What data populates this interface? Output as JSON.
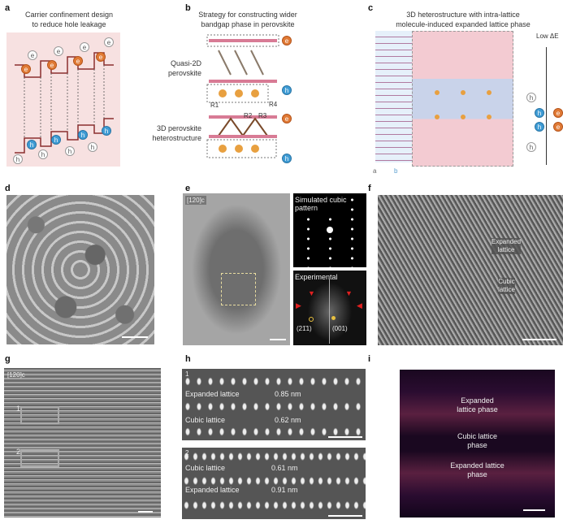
{
  "panels": {
    "a": {
      "label": "a",
      "title_line1": "Carrier confinement design",
      "title_line2": "to reduce hole leakage",
      "electron": "e",
      "hole": "h"
    },
    "b": {
      "label": "b",
      "title_line1": "Strategy for constructing wider",
      "title_line2": "bandgap phase in perovskite",
      "quasi2d_1": "Quasi-2D",
      "quasi2d_2": "perovskite",
      "hetero_1": "3D perovskite",
      "hetero_2": "heterostructure",
      "r1": "R1",
      "r2": "R2",
      "r3": "R3",
      "r4": "R4",
      "electron": "e",
      "hole": "h"
    },
    "c": {
      "label": "c",
      "title_line1": "3D heterostructure with intra-lattice",
      "title_line2": "molecule-induced expanded lattice phase",
      "energy_label": "Low ΔE",
      "axis_a": "a",
      "axis_b": "b",
      "electron": "e",
      "hole": "h"
    },
    "d": {
      "label": "d"
    },
    "e": {
      "label": "e",
      "zone_axis": "[120]c",
      "sim_1": "Simulated cubic",
      "sim_2": "pattern",
      "exp": "Experimental",
      "spot1": "(21̄1)",
      "spot2": "(001)"
    },
    "f": {
      "label": "f",
      "expanded_1": "Expanded",
      "expanded_2": "lattice",
      "cubic_1": "Cubic",
      "cubic_2": "lattice"
    },
    "g": {
      "label": "g",
      "zone_axis": "[120]c",
      "box1": "1",
      "box2": "2"
    },
    "h": {
      "label": "h",
      "top": {
        "index": "1",
        "row1_label": "Expanded lattice",
        "row1_value": "0.85 nm",
        "row2_label": "Cubic lattice",
        "row2_value": "0.62 nm"
      },
      "bottom": {
        "index": "2",
        "row1_label": "Cubic lattice",
        "row1_value": "0.61 nm",
        "row2_label": "Expanded lattice",
        "row2_value": "0.91 nm"
      }
    },
    "i": {
      "label": "i",
      "phase1_1": "Expanded",
      "phase1_2": "lattice phase",
      "phase2_1": "Cubic lattice",
      "phase2_2": "phase",
      "phase3_1": "Expanded lattice",
      "phase3_2": "phase"
    }
  },
  "colors": {
    "electron": "#e07a35",
    "hole": "#3e9bd4",
    "band": "#8b2f2f",
    "panel_a_bg": "#f7e1e1",
    "fft_arrow": "#e02020"
  }
}
